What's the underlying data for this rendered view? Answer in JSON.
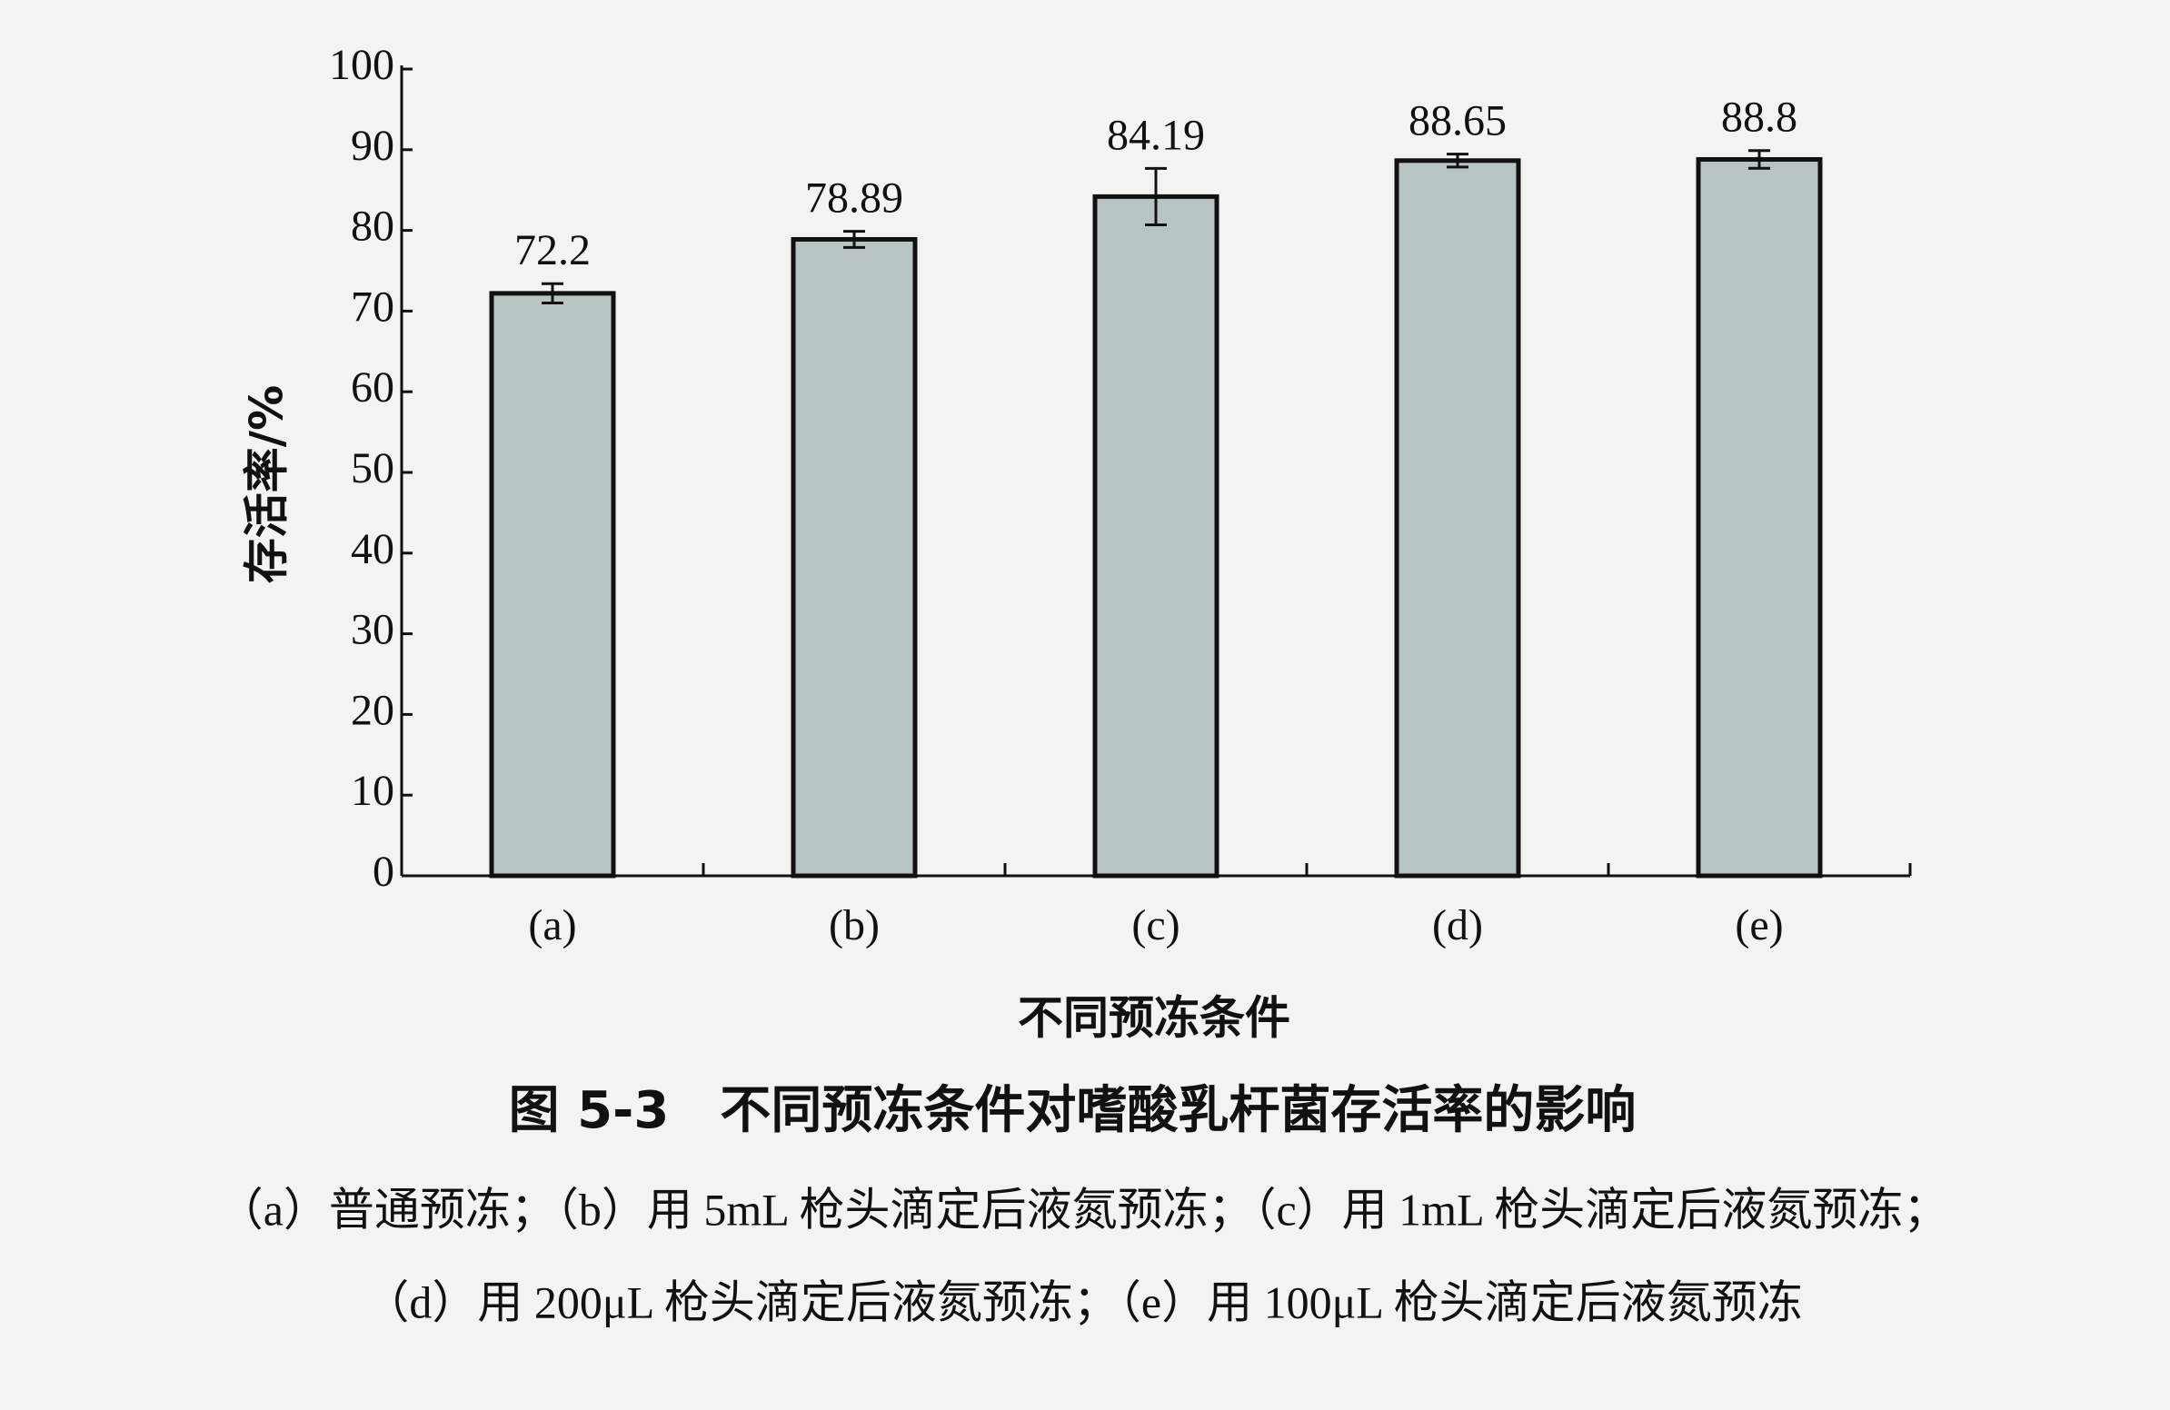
{
  "chart_data": {
    "type": "bar",
    "categories": [
      "(a)",
      "(b)",
      "(c)",
      "(d)",
      "(e)"
    ],
    "values": [
      72.2,
      78.89,
      84.19,
      88.65,
      88.8
    ],
    "errors": [
      1.2,
      1.0,
      3.5,
      0.8,
      1.1
    ],
    "color": "#b8c3c3",
    "ylim": [
      0,
      100
    ],
    "yticks": [
      0,
      10,
      20,
      30,
      40,
      50,
      60,
      70,
      80,
      90,
      100
    ],
    "y_label": "存活率/%",
    "x_label": "不同预冻条件",
    "caption": "图 5-3　不同预冻条件对嗜酸乳杆菌存活率的影响",
    "notes": [
      "（a）普通预冻；（b）用 5mL 枪头滴定后液氮预冻；（c）用 1mL 枪头滴定后液氮预冻；",
      "（d）用 200μL 枪头滴定后液氮预冻；（e）用 100μL 枪头滴定后液氮预冻"
    ]
  }
}
